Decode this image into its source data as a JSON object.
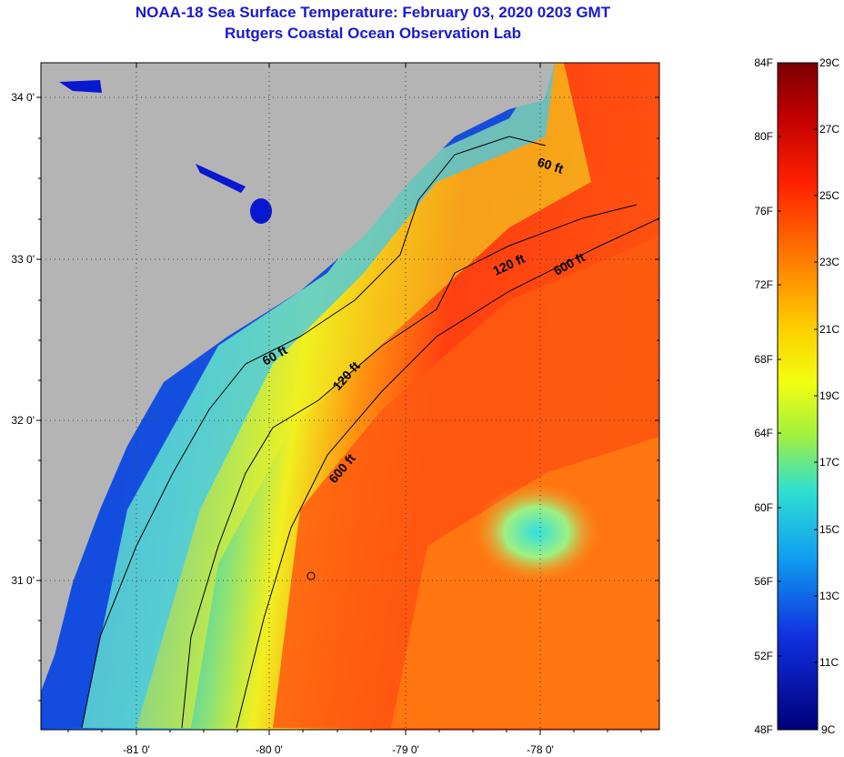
{
  "title": {
    "line1": "NOAA-18 Sea Surface Temperature:  February 03, 2020 0203 GMT",
    "line2": "Rutgers Coastal Ocean Observation Lab"
  },
  "map": {
    "latitude_labels": [
      "34 0'",
      "33 0'",
      "32 0'",
      "31 0'"
    ],
    "longitude_labels": [
      "-81 0'",
      "-80 0'",
      "-79 0'",
      "-78 0'"
    ],
    "contour_labels": [
      "60 ft",
      "120 ft",
      "600 ft",
      "60 ft",
      "120 ft",
      "600 ft"
    ],
    "colors": {
      "land": "#b4b4b4",
      "cold": "#0010d0",
      "warm": "#ff3000"
    }
  },
  "colorbar": {
    "fahrenheit_labels": [
      "84F",
      "80F",
      "76F",
      "72F",
      "68F",
      "64F",
      "60F",
      "56F",
      "52F",
      "48F"
    ],
    "celsius_labels": [
      "29C",
      "27C",
      "25C",
      "23C",
      "21C",
      "19C",
      "17C",
      "15C",
      "13C",
      "11C",
      "9C"
    ],
    "gradient_top": "#800000",
    "gradient_bottom": "#000080"
  }
}
